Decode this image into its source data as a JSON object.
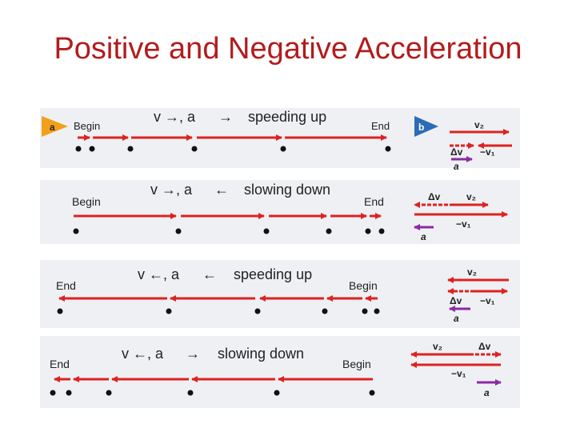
{
  "title": "Positive and Negative Acceleration",
  "colors": {
    "title": "#b31b1b",
    "arrow": "#dd2222",
    "accel": "#8b2aa3",
    "panel": "#eef0f3",
    "badge": "#f2a01a",
    "text": "#222222"
  },
  "panels": [
    {
      "velocity": "v →, a",
      "accel_dir": "→",
      "motion": "speeding up",
      "left_label": "Begin",
      "right_label": "End",
      "badge_left": "a",
      "badge_right": "b",
      "vector_labels": [
        "v₂",
        "Δv",
        "−v₁",
        "a"
      ]
    },
    {
      "velocity": "v →, a",
      "accel_dir": "←",
      "motion": "slowing down",
      "left_label": "Begin",
      "right_label": "End",
      "vector_labels": [
        "Δv",
        "v₂",
        "−v₁",
        "a"
      ]
    },
    {
      "velocity": "v ←, a",
      "accel_dir": "←",
      "motion": "speeding up",
      "left_label": "End",
      "right_label": "Begin",
      "vector_labels": [
        "v₂",
        "Δv",
        "−v₁",
        "a"
      ]
    },
    {
      "velocity": "v ←, a",
      "accel_dir": "→",
      "motion": "slowing down",
      "left_label": "End",
      "right_label": "Begin",
      "vector_labels": [
        "v₂",
        "Δv",
        "−v₁",
        "a"
      ]
    }
  ]
}
